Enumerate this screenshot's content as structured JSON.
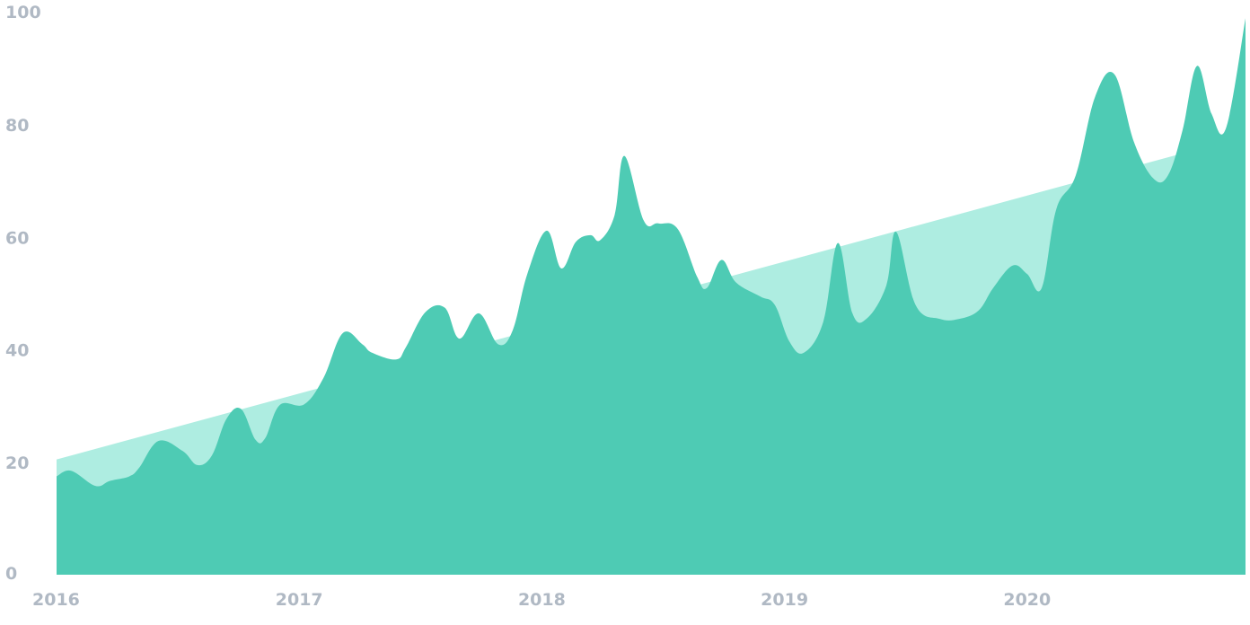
{
  "chart_data": {
    "type": "area",
    "x_unit": "year",
    "xlim": [
      2016,
      2020.9
    ],
    "ylim": [
      0,
      100
    ],
    "x_ticks": [
      "2016",
      "2017",
      "2018",
      "2019",
      "2020"
    ],
    "y_ticks": [
      "0",
      "20",
      "40",
      "60",
      "80",
      "100"
    ],
    "grid": false,
    "legend": "none",
    "series": [
      {
        "kind": "trend",
        "color": "#aeede1",
        "x": [
          2016.0,
          2020.9
        ],
        "y": [
          20.5,
          78
        ]
      },
      {
        "kind": "actual",
        "color": "#4ecbb4",
        "x": [
          2016.0,
          2016.06,
          2016.16,
          2016.22,
          2016.3,
          2016.34,
          2016.42,
          2016.52,
          2016.58,
          2016.64,
          2016.7,
          2016.76,
          2016.82,
          2016.86,
          2016.92,
          2017.02,
          2017.1,
          2017.18,
          2017.26,
          2017.3,
          2017.4,
          2017.44,
          2017.52,
          2017.6,
          2017.66,
          2017.74,
          2017.82,
          2017.88,
          2017.94,
          2018.02,
          2018.08,
          2018.14,
          2018.2,
          2018.24,
          2018.3,
          2018.34,
          2018.42,
          2018.48,
          2018.56,
          2018.64,
          2018.68,
          2018.74,
          2018.8,
          2018.9,
          2018.96,
          2019.02,
          2019.08,
          2019.16,
          2019.22,
          2019.28,
          2019.34,
          2019.42,
          2019.46,
          2019.54,
          2019.64,
          2019.72,
          2019.8,
          2019.86,
          2019.94,
          2020.0,
          2020.06,
          2020.12,
          2020.2,
          2020.28,
          2020.36,
          2020.44,
          2020.52,
          2020.58,
          2020.64,
          2020.7,
          2020.76,
          2020.82,
          2020.9
        ],
        "y": [
          17.5,
          18.5,
          15.8,
          16.7,
          17.5,
          19,
          23.8,
          22,
          19.5,
          21.2,
          27.7,
          29.5,
          24,
          24.3,
          30.2,
          30.3,
          35,
          43,
          41,
          39.5,
          38.3,
          40.5,
          46.7,
          47.5,
          42,
          46.5,
          41,
          43.5,
          53.5,
          61.2,
          54.5,
          59.2,
          60.4,
          59.5,
          64,
          74.5,
          63,
          62.5,
          61.5,
          53,
          51,
          56,
          52,
          49.5,
          48,
          41.5,
          39.5,
          45,
          59,
          46.5,
          45.6,
          51.5,
          61,
          48,
          45.5,
          45.5,
          47,
          51,
          55,
          53.5,
          51,
          65,
          71,
          85,
          89,
          77,
          70.5,
          71,
          79,
          90.5,
          82,
          79.5,
          99
        ]
      }
    ]
  }
}
